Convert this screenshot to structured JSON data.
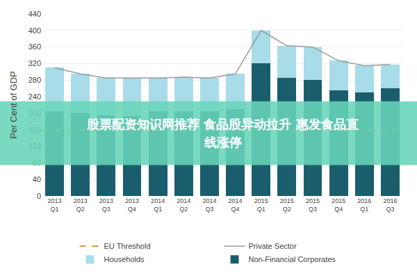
{
  "chart_data": {
    "type": "bar",
    "stacked": true,
    "categories": [
      "2013\nQ1",
      "2013\nQ2",
      "2013\nQ3",
      "2013\nQ4",
      "2014\nQ1",
      "2014\nQ2",
      "2014\nQ3",
      "2014\nQ4",
      "2015\nQ1",
      "2015\nQ2",
      "2015\nQ3",
      "2015\nQ4",
      "2016\nQ1",
      "2016\nQ3"
    ],
    "series": [
      {
        "name": "Non-Financial Corporates",
        "type": "bar",
        "color": "#1a5e6e",
        "values": [
          205,
          200,
          195,
          193,
          205,
          205,
          205,
          210,
          320,
          285,
          280,
          255,
          250,
          260
        ]
      },
      {
        "name": "Households",
        "type": "bar",
        "color": "#a8dce8",
        "values": [
          105,
          95,
          90,
          92,
          80,
          82,
          80,
          85,
          80,
          78,
          80,
          72,
          65,
          58
        ]
      },
      {
        "name": "Private Sector",
        "type": "line",
        "color": "#999999",
        "values": [
          310,
          295,
          285,
          285,
          285,
          287,
          285,
          295,
          400,
          363,
          360,
          327,
          315,
          318
        ]
      }
    ],
    "hlines": [
      {
        "name": "EU Threshold",
        "value": 160,
        "color": "#d4902a",
        "line_style": "dashed"
      }
    ],
    "ylabel": "Per Cent of GDP",
    "ylim": [
      0,
      440
    ],
    "yticks": [
      0,
      40,
      80,
      120,
      160,
      200,
      240,
      280,
      320,
      360,
      400,
      440
    ],
    "grid": true,
    "legend": "bottom",
    "annotations": [
      "股票配资知识网推荐 食品股异动拉升 惠发食品直",
      "线涨停"
    ]
  }
}
